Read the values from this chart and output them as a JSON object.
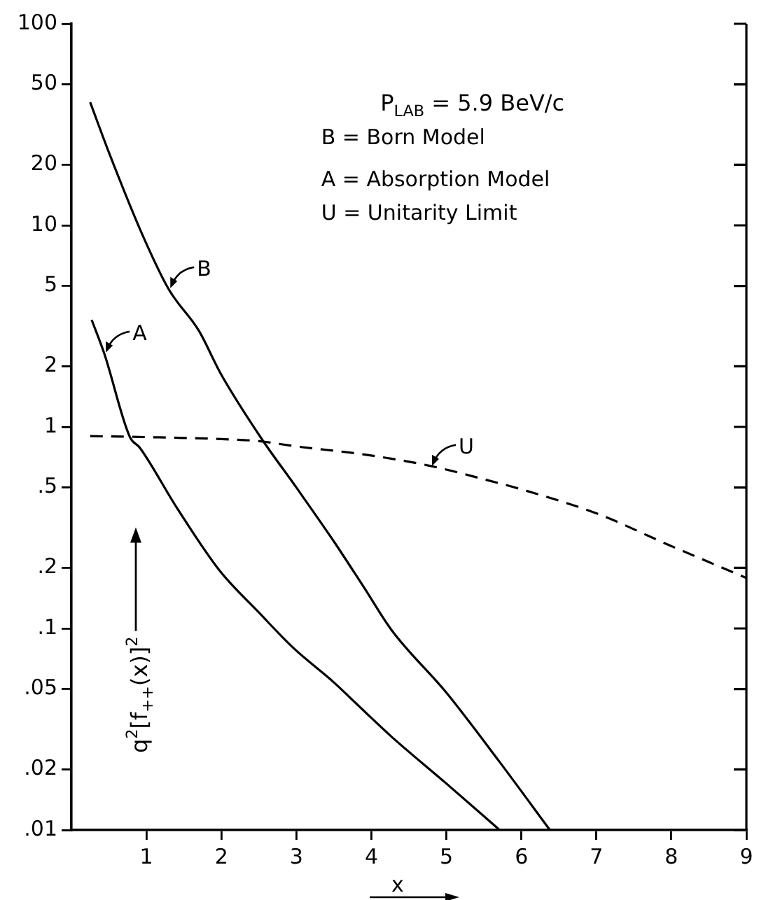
{
  "chart_data": {
    "type": "line",
    "xlabel": "x",
    "ylabel": "q$^{2}$[f$_{++}$(x)]$^{2}$",
    "annotations": [
      "P$_{LAB}$ = 5.9 BeV/c",
      "B = Born Model",
      "A = Absorption Model",
      "U = Unitarity Limit",
      {
        "text": "B",
        "x": 1.3,
        "y": 4.8
      },
      {
        "text": "A",
        "x": 0.44,
        "y": 2.3
      },
      {
        "text": "U",
        "x": 4.79,
        "y": 0.63
      }
    ],
    "series": [
      {
        "color": "#000000",
        "line_style": "solid",
        "x": [
          0.25,
          0.5,
          0.94,
          1.3,
          1.7,
          1.99,
          2.53,
          3.0,
          3.5,
          3.9,
          4.27,
          5.0,
          5.7,
          6.38
        ],
        "values": [
          40.8,
          23,
          9.1,
          4.8,
          3.0,
          1.84,
          0.88,
          0.5,
          0.27,
          0.16,
          0.098,
          0.048,
          0.022,
          0.01
        ]
      },
      {
        "color": "#000000",
        "line_style": "solid",
        "x": [
          0.27,
          0.44,
          0.78,
          0.91,
          1.4,
          1.97,
          2.5,
          2.96,
          3.5,
          3.9,
          4.27,
          5.0,
          5.71
        ],
        "values": [
          3.4,
          2.3,
          0.89,
          0.79,
          0.4,
          0.195,
          0.12,
          0.08,
          0.054,
          0.039,
          0.029,
          0.017,
          0.01
        ]
      },
      {
        "color": "#000000",
        "line_style": "dashed",
        "x": [
          0.25,
          1,
          2,
          2.5,
          3,
          3.9,
          4.79,
          5.5,
          6,
          7.02,
          7.96,
          9
        ],
        "values": [
          0.9,
          0.89,
          0.87,
          0.85,
          0.8,
          0.73,
          0.64,
          0.55,
          0.49,
          0.37,
          0.26,
          0.178
        ]
      }
    ],
    "log": "y",
    "xlim": [
      0,
      9
    ],
    "xticks": [
      1,
      2,
      3,
      4,
      5,
      6,
      7,
      8,
      9
    ],
    "ylim": [
      0.01,
      100
    ],
    "yticks": [
      {
        "value": 0.01,
        "label": ".01"
      },
      {
        "value": 0.02,
        "label": ".02"
      },
      {
        "value": 0.05,
        "label": ".05"
      },
      {
        "value": 0.1,
        "label": ".1"
      },
      {
        "value": 0.2,
        "label": ".2"
      },
      {
        "value": 0.5,
        "label": ".5"
      },
      1,
      2,
      5,
      10,
      20,
      50,
      100
    ],
    "grid": false,
    "legend": false,
    "marker": "none"
  }
}
